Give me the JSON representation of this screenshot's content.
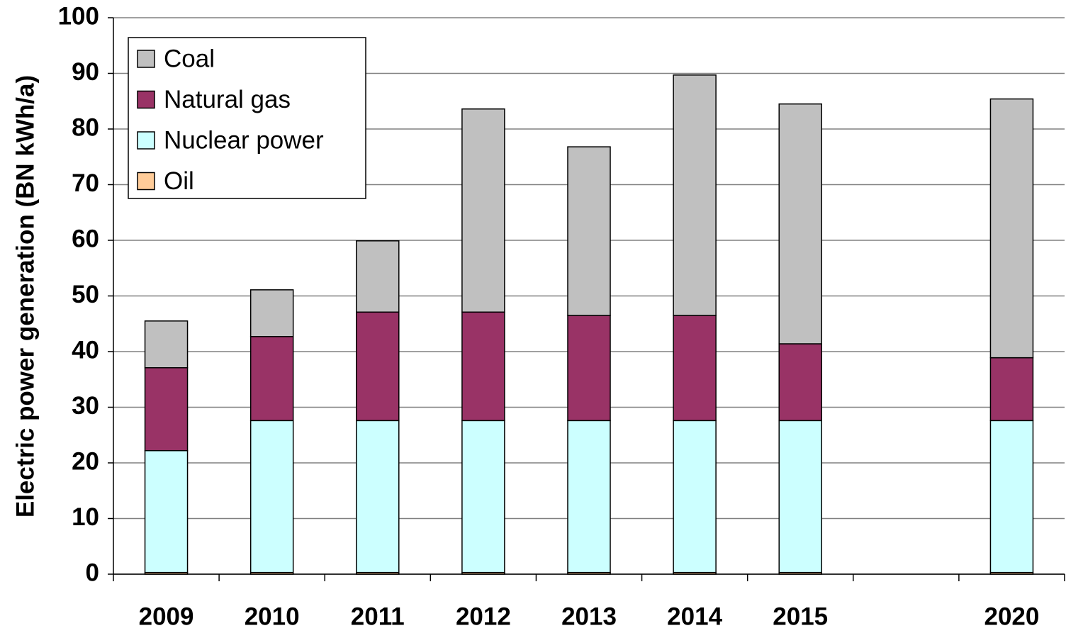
{
  "chart_data": {
    "type": "bar",
    "stacked": true,
    "y_label": "Electric power generation (BN kWh/a)",
    "categories": [
      "2009",
      "2010",
      "2011",
      "2012",
      "2013",
      "2014",
      "2015",
      null,
      "2020"
    ],
    "series": [
      {
        "name": "Coal",
        "color": "#c0c0c0",
        "values": [
          8.4,
          8.4,
          12.8,
          36.5,
          30.3,
          43.2,
          43.1,
          null,
          46.5
        ]
      },
      {
        "name": "Natural gas",
        "color": "#993366",
        "values": [
          14.9,
          15.1,
          19.5,
          19.5,
          18.9,
          18.9,
          13.8,
          null,
          11.3
        ]
      },
      {
        "name": "Nuclear power",
        "color": "#ccffff",
        "values": [
          21.9,
          27.3,
          27.3,
          27.3,
          27.3,
          27.3,
          27.3,
          null,
          27.3
        ]
      },
      {
        "name": "Oil",
        "color": "#ffcc99",
        "values": [
          0.3,
          0.3,
          0.3,
          0.3,
          0.3,
          0.3,
          0.3,
          null,
          0.3
        ]
      }
    ],
    "ylim": [
      0,
      100
    ],
    "yticks": [
      0,
      10,
      20,
      30,
      40,
      50,
      60,
      70,
      80,
      90,
      100
    ],
    "grid": true,
    "legend": "top-left"
  }
}
